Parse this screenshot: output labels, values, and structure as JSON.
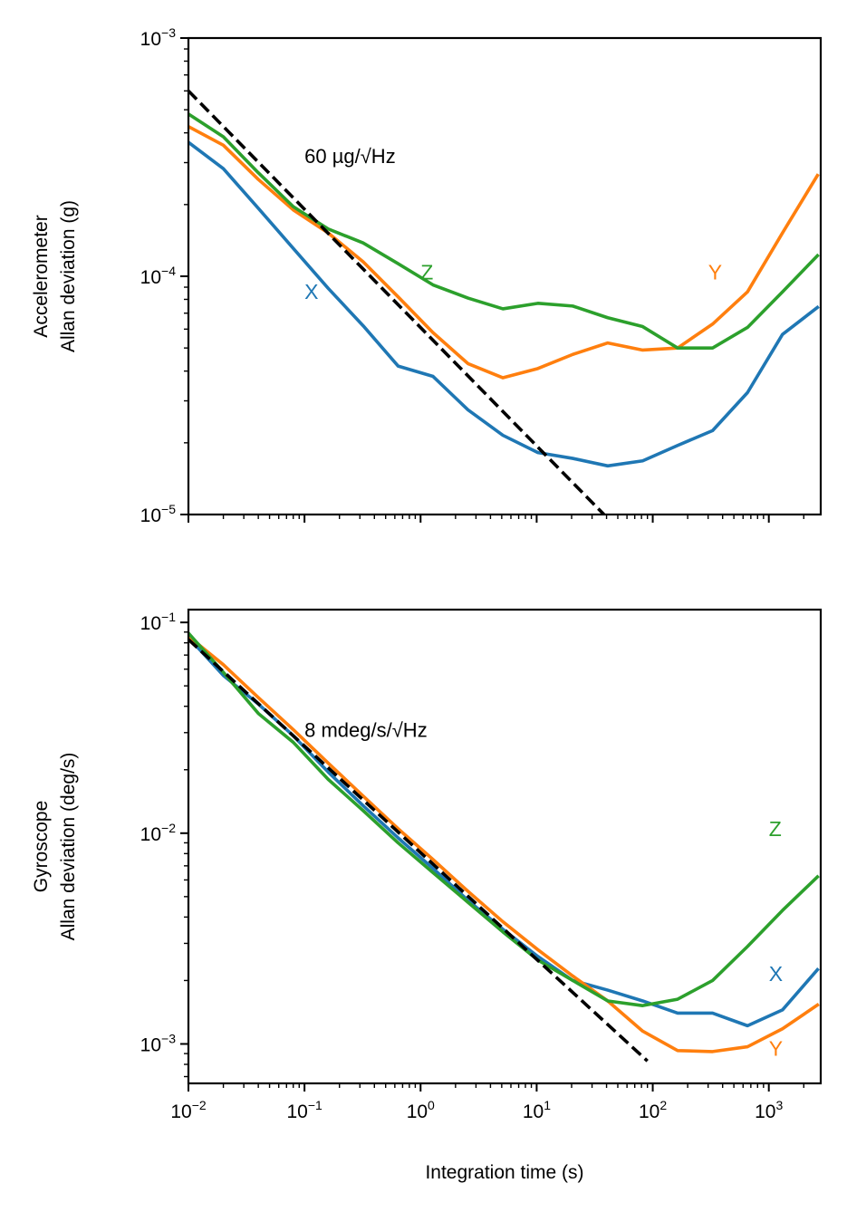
{
  "chart_data": [
    {
      "type": "line",
      "id": "accelerometer",
      "ylabel_lines": [
        "Accelerometer",
        "Allan deviation (g)"
      ],
      "xlabel": "",
      "xscale": "log",
      "yscale": "log",
      "xlim": [
        0.01,
        2800
      ],
      "ylim": [
        1e-05,
        0.001
      ],
      "yticks": [
        {
          "value": 1e-05,
          "base": "10",
          "exp": "−5"
        },
        {
          "value": 0.0001,
          "base": "10",
          "exp": "−4"
        },
        {
          "value": 0.001,
          "base": "10",
          "exp": "−3"
        }
      ],
      "x_tick_labels_visible": false,
      "grid": false,
      "series": [
        {
          "name": "X",
          "color": "#1f77b4",
          "x": [
            0.01,
            0.02,
            0.04,
            0.08,
            0.16,
            0.32,
            0.64,
            1.28,
            2.56,
            5.12,
            10.24,
            20.48,
            40.96,
            81.92,
            163.84,
            327.68,
            655.36,
            1310.72,
            2621.44
          ],
          "y": [
            0.000365,
            0.000283,
            0.000193,
            0.000131,
            8.9e-05,
            6.2e-05,
            4.2e-05,
            3.8e-05,
            2.75e-05,
            2.15e-05,
            1.82e-05,
            1.72e-05,
            1.6e-05,
            1.68e-05,
            1.95e-05,
            2.25e-05,
            3.25e-05,
            5.7e-05,
            7.4e-05
          ]
        },
        {
          "name": "Y",
          "color": "#ff7f0e",
          "x": [
            0.01,
            0.02,
            0.04,
            0.08,
            0.16,
            0.32,
            0.64,
            1.28,
            2.56,
            5.12,
            10.24,
            20.48,
            40.96,
            81.92,
            163.84,
            327.68,
            655.36,
            1310.72,
            2621.44
          ],
          "y": [
            0.000425,
            0.000355,
            0.000255,
            0.00019,
            0.000152,
            0.000115,
            8.2e-05,
            5.8e-05,
            4.3e-05,
            3.75e-05,
            4.1e-05,
            4.7e-05,
            5.25e-05,
            4.9e-05,
            5e-05,
            6.3e-05,
            8.6e-05,
            0.000152,
            0.000265
          ]
        },
        {
          "name": "Z",
          "color": "#2ca02c",
          "x": [
            0.01,
            0.02,
            0.04,
            0.08,
            0.16,
            0.32,
            0.64,
            1.28,
            2.56,
            5.12,
            10.24,
            20.48,
            40.96,
            81.92,
            163.84,
            327.68,
            655.36,
            1310.72,
            2621.44
          ],
          "y": [
            0.00048,
            0.000385,
            0.000272,
            0.000196,
            0.000158,
            0.000138,
            0.000113,
            9.2e-05,
            8.1e-05,
            7.3e-05,
            7.7e-05,
            7.5e-05,
            6.7e-05,
            6.15e-05,
            5e-05,
            5e-05,
            6.1e-05,
            8.6e-05,
            0.000122
          ]
        }
      ],
      "reference_line": {
        "color": "#000000",
        "style": "dashed",
        "x": [
          0.01,
          38
        ],
        "y": [
          0.0006,
          1e-05
        ]
      },
      "annotations": [
        {
          "text": "60 µg/√Hz",
          "x": 0.1,
          "y": 0.00032,
          "color": "#000000",
          "anchor": "start"
        },
        {
          "text": "X",
          "x": 0.1,
          "y": 8.6e-05,
          "color": "#1f77b4",
          "anchor": "start"
        },
        {
          "text": "Z",
          "x": 1.0,
          "y": 0.000104,
          "color": "#2ca02c",
          "anchor": "start"
        },
        {
          "text": "Y",
          "x": 300,
          "y": 0.000104,
          "color": "#ff7f0e",
          "anchor": "start"
        }
      ]
    },
    {
      "type": "line",
      "id": "gyroscope",
      "ylabel_lines": [
        "Gyroscope",
        "Allan deviation (deg/s)"
      ],
      "xlabel": "Integration time (s)",
      "xscale": "log",
      "yscale": "log",
      "xlim": [
        0.01,
        2800
      ],
      "ylim": [
        0.00065,
        0.115
      ],
      "yticks": [
        {
          "value": 0.001,
          "base": "10",
          "exp": "−3"
        },
        {
          "value": 0.01,
          "base": "10",
          "exp": "−2"
        },
        {
          "value": 0.1,
          "base": "10",
          "exp": "−1"
        }
      ],
      "xticks": [
        {
          "value": 0.01,
          "base": "10",
          "exp": "−2"
        },
        {
          "value": 0.1,
          "base": "10",
          "exp": "−1"
        },
        {
          "value": 1,
          "base": "10",
          "exp": "0"
        },
        {
          "value": 10,
          "base": "10",
          "exp": "1"
        },
        {
          "value": 100,
          "base": "10",
          "exp": "2"
        },
        {
          "value": 1000,
          "base": "10",
          "exp": "3"
        }
      ],
      "x_tick_labels_visible": true,
      "grid": false,
      "series": [
        {
          "name": "X",
          "color": "#1f77b4",
          "x": [
            0.01,
            0.02,
            0.04,
            0.08,
            0.16,
            0.32,
            0.64,
            1.28,
            2.56,
            5.12,
            10.24,
            20.48,
            40.96,
            81.92,
            163.84,
            327.68,
            655.36,
            1310.72,
            2621.44
          ],
          "y": [
            0.085,
            0.056,
            0.041,
            0.029,
            0.0195,
            0.0135,
            0.0095,
            0.0068,
            0.0048,
            0.0035,
            0.0026,
            0.002,
            0.0018,
            0.0016,
            0.0014,
            0.0014,
            0.00122,
            0.00145,
            0.00225
          ]
        },
        {
          "name": "Y",
          "color": "#ff7f0e",
          "x": [
            0.01,
            0.02,
            0.04,
            0.08,
            0.16,
            0.32,
            0.64,
            1.28,
            2.56,
            5.12,
            10.24,
            20.48,
            40.96,
            81.92,
            163.84,
            327.68,
            655.36,
            1310.72,
            2621.44
          ],
          "y": [
            0.086,
            0.063,
            0.044,
            0.031,
            0.0215,
            0.015,
            0.0105,
            0.0075,
            0.0053,
            0.0038,
            0.0028,
            0.0021,
            0.0016,
            0.00115,
            0.00093,
            0.00092,
            0.00097,
            0.00118,
            0.00153
          ]
        },
        {
          "name": "Z",
          "color": "#2ca02c",
          "x": [
            0.01,
            0.02,
            0.04,
            0.08,
            0.16,
            0.32,
            0.64,
            1.28,
            2.56,
            5.12,
            10.24,
            20.48,
            40.96,
            81.92,
            163.84,
            327.68,
            655.36,
            1310.72,
            2621.44
          ],
          "y": [
            0.089,
            0.058,
            0.037,
            0.027,
            0.018,
            0.0128,
            0.009,
            0.0065,
            0.0047,
            0.0034,
            0.0025,
            0.002,
            0.0016,
            0.00152,
            0.00163,
            0.002,
            0.0029,
            0.0043,
            0.0062
          ]
        }
      ],
      "reference_line": {
        "color": "#000000",
        "style": "dashed",
        "x": [
          0.01,
          90
        ],
        "y": [
          0.083,
          0.00083
        ]
      },
      "annotations": [
        {
          "text": "8 mdeg/s/√Hz",
          "x": 0.1,
          "y": 0.031,
          "color": "#000000",
          "anchor": "start"
        },
        {
          "text": "Z",
          "x": 1000,
          "y": 0.0105,
          "color": "#2ca02c",
          "anchor": "start"
        },
        {
          "text": "X",
          "x": 1000,
          "y": 0.00215,
          "color": "#1f77b4",
          "anchor": "start"
        },
        {
          "text": "Y",
          "x": 1000,
          "y": 0.00095,
          "color": "#ff7f0e",
          "anchor": "start"
        }
      ]
    }
  ]
}
